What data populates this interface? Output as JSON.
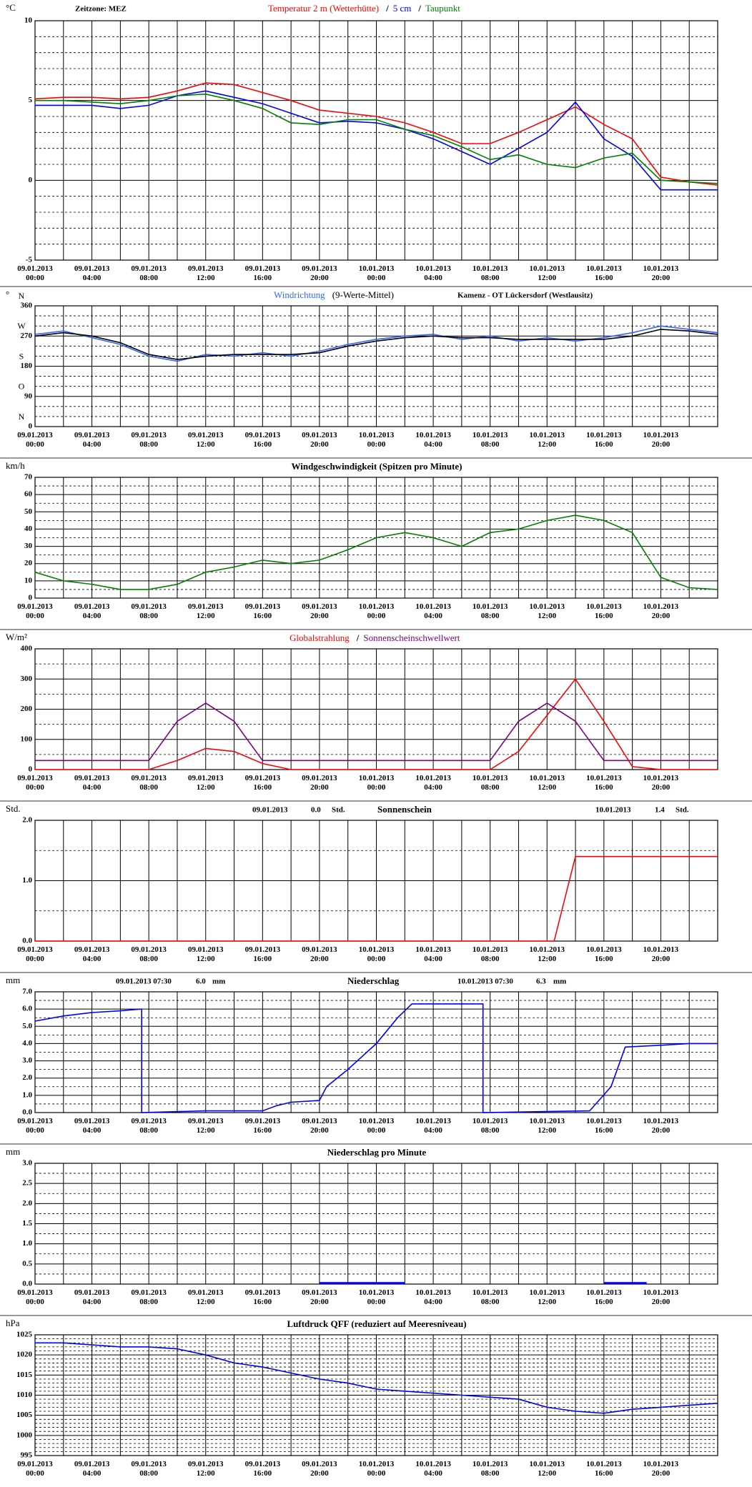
{
  "chart_data": [
    {
      "type": "line",
      "unit": "°C",
      "annotations": [
        "Zeitzone: MEZ"
      ],
      "legend_separator": "/",
      "x": [
        "09.01.2013 00:00",
        "09.01.2013 02:00",
        "09.01.2013 04:00",
        "09.01.2013 06:00",
        "09.01.2013 08:00",
        "09.01.2013 10:00",
        "09.01.2013 12:00",
        "09.01.2013 14:00",
        "09.01.2013 16:00",
        "09.01.2013 18:00",
        "09.01.2013 20:00",
        "09.01.2013 22:00",
        "10.01.2013 00:00",
        "10.01.2013 02:00",
        "10.01.2013 04:00",
        "10.01.2013 06:00",
        "10.01.2013 08:00",
        "10.01.2013 10:00",
        "10.01.2013 12:00",
        "10.01.2013 14:00",
        "10.01.2013 16:00",
        "10.01.2013 18:00",
        "10.01.2013 20:00",
        "10.01.2013 22:00",
        "11.01.2013 00:00"
      ],
      "series": [
        {
          "name": "Temperatur 2 m (Wetterhütte)",
          "color": "#ff0000",
          "values": [
            5.1,
            5.2,
            5.2,
            5.1,
            5.2,
            5.6,
            6.1,
            6.0,
            5.5,
            5.0,
            4.4,
            4.2,
            4.0,
            3.6,
            3.0,
            2.3,
            2.3,
            3.0,
            3.8,
            4.6,
            3.5,
            2.6,
            0.2,
            -0.1,
            -0.3
          ]
        },
        {
          "name": "5 cm",
          "color": "#0000ff",
          "values": [
            4.7,
            4.7,
            4.7,
            4.5,
            4.7,
            5.3,
            5.6,
            5.2,
            4.8,
            4.2,
            3.6,
            3.7,
            3.6,
            3.2,
            2.6,
            1.8,
            1.0,
            2.0,
            3.0,
            4.9,
            2.6,
            1.5,
            -0.6,
            -0.6,
            -0.6
          ]
        },
        {
          "name": "Taupunkt",
          "color": "#008000",
          "values": [
            5.0,
            5.0,
            4.9,
            4.8,
            5.0,
            5.3,
            5.4,
            5.0,
            4.5,
            3.6,
            3.5,
            3.8,
            3.8,
            3.2,
            2.8,
            2.1,
            1.3,
            1.6,
            1.0,
            0.8,
            1.4,
            1.7,
            0.0,
            -0.1,
            -0.2
          ]
        }
      ],
      "xlim": [
        "09.01.2013 00:00",
        "11.01.2013 00:00"
      ],
      "xticks": [
        "09.01.2013 00:00",
        "09.01.2013 04:00",
        "09.01.2013 08:00",
        "09.01.2013 12:00",
        "09.01.2013 16:00",
        "09.01.2013 20:00",
        "10.01.2013 00:00",
        "10.01.2013 04:00",
        "10.01.2013 08:00",
        "10.01.2013 12:00",
        "10.01.2013 16:00",
        "10.01.2013 20:00"
      ],
      "ylim": [
        -5,
        10
      ],
      "yticks": [
        -5,
        0,
        5,
        10
      ],
      "grid": true
    },
    {
      "type": "line",
      "unit": "°",
      "annotations": [
        "Kamenz - OT Lückersdorf (Westlausitz)"
      ],
      "compass_labels": [
        "N",
        "O",
        "S",
        "W",
        "N"
      ],
      "x": [
        "09.01.2013 00:00",
        "09.01.2013 02:00",
        "09.01.2013 04:00",
        "09.01.2013 06:00",
        "09.01.2013 08:00",
        "09.01.2013 10:00",
        "09.01.2013 12:00",
        "09.01.2013 14:00",
        "09.01.2013 16:00",
        "09.01.2013 18:00",
        "09.01.2013 20:00",
        "09.01.2013 22:00",
        "10.01.2013 00:00",
        "10.01.2013 02:00",
        "10.01.2013 04:00",
        "10.01.2013 06:00",
        "10.01.2013 08:00",
        "10.01.2013 10:00",
        "10.01.2013 12:00",
        "10.01.2013 14:00",
        "10.01.2013 16:00",
        "10.01.2013 18:00",
        "10.01.2013 20:00",
        "10.01.2013 22:00",
        "11.01.2013 00:00"
      ],
      "series": [
        {
          "name": "Windrichtung",
          "color": "#3366ff",
          "values": [
            275,
            285,
            265,
            245,
            210,
            195,
            215,
            210,
            220,
            210,
            225,
            245,
            260,
            270,
            275,
            260,
            270,
            255,
            265,
            255,
            265,
            280,
            300,
            290,
            280
          ]
        },
        {
          "name": "(9-Werte-Mittel)",
          "color": "#000000",
          "values": [
            270,
            280,
            270,
            250,
            215,
            200,
            210,
            215,
            215,
            215,
            220,
            240,
            255,
            265,
            270,
            265,
            265,
            260,
            260,
            260,
            260,
            270,
            290,
            285,
            275
          ]
        }
      ],
      "xlim": [
        "09.01.2013 00:00",
        "11.01.2013 00:00"
      ],
      "xticks": [
        "09.01.2013 00:00",
        "09.01.2013 04:00",
        "09.01.2013 08:00",
        "09.01.2013 12:00",
        "09.01.2013 16:00",
        "09.01.2013 20:00",
        "10.01.2013 00:00",
        "10.01.2013 04:00",
        "10.01.2013 08:00",
        "10.01.2013 12:00",
        "10.01.2013 16:00",
        "10.01.2013 20:00"
      ],
      "ylim": [
        0,
        360
      ],
      "yticks": [
        0,
        90,
        180,
        270,
        360
      ],
      "grid": true
    },
    {
      "type": "line",
      "unit": "km/h",
      "title": "Windgeschwindigkeit (Spitzen pro Minute)",
      "x": [
        "09.01.2013 00:00",
        "09.01.2013 02:00",
        "09.01.2013 04:00",
        "09.01.2013 06:00",
        "09.01.2013 08:00",
        "09.01.2013 10:00",
        "09.01.2013 12:00",
        "09.01.2013 14:00",
        "09.01.2013 16:00",
        "09.01.2013 18:00",
        "09.01.2013 20:00",
        "09.01.2013 22:00",
        "10.01.2013 00:00",
        "10.01.2013 02:00",
        "10.01.2013 04:00",
        "10.01.2013 06:00",
        "10.01.2013 08:00",
        "10.01.2013 10:00",
        "10.01.2013 12:00",
        "10.01.2013 14:00",
        "10.01.2013 16:00",
        "10.01.2013 18:00",
        "10.01.2013 20:00",
        "10.01.2013 22:00",
        "11.01.2013 00:00"
      ],
      "series": [
        {
          "color": "#008000",
          "values": [
            15,
            10,
            8,
            5,
            5,
            8,
            15,
            18,
            22,
            20,
            22,
            28,
            35,
            38,
            35,
            30,
            38,
            40,
            45,
            48,
            45,
            38,
            12,
            6,
            5
          ]
        }
      ],
      "xlim": [
        "09.01.2013 00:00",
        "11.01.2013 00:00"
      ],
      "xticks": [
        "09.01.2013 00:00",
        "09.01.2013 04:00",
        "09.01.2013 08:00",
        "09.01.2013 12:00",
        "09.01.2013 16:00",
        "09.01.2013 20:00",
        "10.01.2013 00:00",
        "10.01.2013 04:00",
        "10.01.2013 08:00",
        "10.01.2013 12:00",
        "10.01.2013 16:00",
        "10.01.2013 20:00"
      ],
      "ylim": [
        0,
        70
      ],
      "yticks": [
        0,
        10,
        20,
        30,
        40,
        50,
        60,
        70
      ],
      "grid": true
    },
    {
      "type": "line",
      "unit": "W/m²",
      "legend_separator": "/",
      "x": [
        "09.01.2013 00:00",
        "09.01.2013 02:00",
        "09.01.2013 04:00",
        "09.01.2013 06:00",
        "09.01.2013 08:00",
        "09.01.2013 10:00",
        "09.01.2013 12:00",
        "09.01.2013 14:00",
        "09.01.2013 16:00",
        "09.01.2013 18:00",
        "09.01.2013 20:00",
        "09.01.2013 22:00",
        "10.01.2013 00:00",
        "10.01.2013 02:00",
        "10.01.2013 04:00",
        "10.01.2013 06:00",
        "10.01.2013 08:00",
        "10.01.2013 10:00",
        "10.01.2013 12:00",
        "10.01.2013 14:00",
        "10.01.2013 16:00",
        "10.01.2013 18:00",
        "10.01.2013 20:00",
        "10.01.2013 22:00",
        "11.01.2013 00:00"
      ],
      "series": [
        {
          "name": "Globalstrahlung",
          "color": "#ff0000",
          "values": [
            0,
            0,
            0,
            0,
            0,
            30,
            70,
            60,
            20,
            0,
            0,
            0,
            0,
            0,
            0,
            0,
            0,
            60,
            180,
            300,
            160,
            10,
            0,
            0,
            0
          ]
        },
        {
          "name": "Sonnenscheinschwellwert",
          "color": "#800080",
          "values": [
            30,
            30,
            30,
            30,
            30,
            160,
            220,
            160,
            30,
            30,
            30,
            30,
            30,
            30,
            30,
            30,
            30,
            160,
            220,
            160,
            30,
            30,
            30,
            30,
            30
          ]
        }
      ],
      "xlim": [
        "09.01.2013 00:00",
        "11.01.2013 00:00"
      ],
      "xticks": [
        "09.01.2013 00:00",
        "09.01.2013 04:00",
        "09.01.2013 08:00",
        "09.01.2013 12:00",
        "09.01.2013 16:00",
        "09.01.2013 20:00",
        "10.01.2013 00:00",
        "10.01.2013 04:00",
        "10.01.2013 08:00",
        "10.01.2013 12:00",
        "10.01.2013 16:00",
        "10.01.2013 20:00"
      ],
      "ylim": [
        0,
        400
      ],
      "yticks": [
        0,
        100,
        200,
        300,
        400
      ],
      "grid": true
    },
    {
      "type": "line",
      "unit": "Std.",
      "title": "Sonnenschein",
      "annotations": [
        "09.01.2013",
        "0.0",
        "Std.",
        "10.01.2013",
        "1.4",
        "Std."
      ],
      "x": [
        "09.01.2013 00:00",
        "10.01.2013 12:30",
        "10.01.2013 14:00",
        "11.01.2013 00:00"
      ],
      "series": [
        {
          "color": "#ff0000",
          "values": [
            0,
            0,
            1.4,
            1.4
          ]
        }
      ],
      "xlim": [
        "09.01.2013 00:00",
        "11.01.2013 00:00"
      ],
      "xticks": [
        "09.01.2013 00:00",
        "09.01.2013 04:00",
        "09.01.2013 08:00",
        "09.01.2013 12:00",
        "09.01.2013 16:00",
        "09.01.2013 20:00",
        "10.01.2013 00:00",
        "10.01.2013 04:00",
        "10.01.2013 08:00",
        "10.01.2013 12:00",
        "10.01.2013 16:00",
        "10.01.2013 20:00"
      ],
      "ylim": [
        0,
        2
      ],
      "yticks": [
        {
          "value": 0,
          "label": "0.0"
        },
        {
          "value": 1,
          "label": "1.0"
        },
        {
          "value": 2,
          "label": "2.0"
        }
      ],
      "grid": true
    },
    {
      "type": "line",
      "unit": "mm",
      "title": "Niederschlag",
      "annotations": [
        "09.01.2013 07:30",
        "6.0",
        "mm",
        "10.01.2013 07:30",
        "6.3",
        "mm"
      ],
      "x": [
        "09.01.2013 00:00",
        "09.01.2013 02:00",
        "09.01.2013 04:00",
        "09.01.2013 06:00",
        "09.01.2013 07:30",
        "09.01.2013 07:30",
        "09.01.2013 12:00",
        "09.01.2013 16:00",
        "09.01.2013 17:00",
        "09.01.2013 18:00",
        "09.01.2013 20:00",
        "09.01.2013 20:30",
        "09.01.2013 22:00",
        "10.01.2013 00:00",
        "10.01.2013 01:30",
        "10.01.2013 02:30",
        "10.01.2013 07:30",
        "10.01.2013 07:30",
        "10.01.2013 15:00",
        "10.01.2013 16:30",
        "10.01.2013 17:30",
        "10.01.2013 20:00",
        "10.01.2013 22:00",
        "11.01.2013 00:00"
      ],
      "series": [
        {
          "color": "#0000ff",
          "values": [
            5.3,
            5.6,
            5.8,
            5.9,
            6.0,
            0.0,
            0.1,
            0.1,
            0.4,
            0.6,
            0.7,
            1.5,
            2.5,
            4.0,
            5.5,
            6.3,
            6.3,
            0.0,
            0.1,
            1.5,
            3.8,
            3.9,
            4.0,
            4.0
          ]
        }
      ],
      "xlim": [
        "09.01.2013 00:00",
        "11.01.2013 00:00"
      ],
      "xticks": [
        "09.01.2013 00:00",
        "09.01.2013 04:00",
        "09.01.2013 08:00",
        "09.01.2013 12:00",
        "09.01.2013 16:00",
        "09.01.2013 20:00",
        "10.01.2013 00:00",
        "10.01.2013 04:00",
        "10.01.2013 08:00",
        "10.01.2013 12:00",
        "10.01.2013 16:00",
        "10.01.2013 20:00"
      ],
      "ylim": [
        0,
        7
      ],
      "yticks": [
        {
          "value": 0,
          "label": "0.0"
        },
        {
          "value": 1,
          "label": "1.0"
        },
        {
          "value": 2,
          "label": "2.0"
        },
        {
          "value": 3,
          "label": "3.0"
        },
        {
          "value": 4,
          "label": "4.0"
        },
        {
          "value": 5,
          "label": "5.0"
        },
        {
          "value": 6,
          "label": "6.0"
        },
        {
          "value": 7,
          "label": "7.0"
        }
      ],
      "grid": true
    },
    {
      "type": "bar",
      "unit": "mm",
      "title": "Niederschlag pro Minute",
      "x": [
        "09.01.2013 20:00",
        "09.01.2013 21:00",
        "09.01.2013 22:00",
        "09.01.2013 23:00",
        "10.01.2013 00:00",
        "10.01.2013 01:00",
        "10.01.2013 16:00",
        "10.01.2013 17:00",
        "10.01.2013 18:00"
      ],
      "series": [
        {
          "color": "#0000ff",
          "values": [
            0.05,
            0.05,
            0.05,
            0.05,
            0.05,
            0.05,
            0.05,
            0.05,
            0.05
          ]
        }
      ],
      "xlim": [
        "09.01.2013 00:00",
        "11.01.2013 00:00"
      ],
      "xticks": [
        "09.01.2013 00:00",
        "09.01.2013 04:00",
        "09.01.2013 08:00",
        "09.01.2013 12:00",
        "09.01.2013 16:00",
        "09.01.2013 20:00",
        "10.01.2013 00:00",
        "10.01.2013 04:00",
        "10.01.2013 08:00",
        "10.01.2013 12:00",
        "10.01.2013 16:00",
        "10.01.2013 20:00"
      ],
      "ylim": [
        0,
        3
      ],
      "yticks": [
        {
          "value": 0,
          "label": "0.0"
        },
        {
          "value": 0.5,
          "label": "0.5"
        },
        {
          "value": 1,
          "label": "1.0"
        },
        {
          "value": 1.5,
          "label": "1.5"
        },
        {
          "value": 2,
          "label": "2.0"
        },
        {
          "value": 2.5,
          "label": "2.5"
        },
        {
          "value": 3,
          "label": "3.0"
        }
      ],
      "grid": true
    },
    {
      "type": "line",
      "unit": "hPa",
      "title": "Luftdruck QFF (reduziert auf Meeresniveau)",
      "x": [
        "09.01.2013 00:00",
        "09.01.2013 02:00",
        "09.01.2013 04:00",
        "09.01.2013 06:00",
        "09.01.2013 08:00",
        "09.01.2013 10:00",
        "09.01.2013 12:00",
        "09.01.2013 14:00",
        "09.01.2013 16:00",
        "09.01.2013 18:00",
        "09.01.2013 20:00",
        "09.01.2013 22:00",
        "10.01.2013 00:00",
        "10.01.2013 02:00",
        "10.01.2013 04:00",
        "10.01.2013 06:00",
        "10.01.2013 08:00",
        "10.01.2013 10:00",
        "10.01.2013 12:00",
        "10.01.2013 14:00",
        "10.01.2013 16:00",
        "10.01.2013 18:00",
        "10.01.2013 20:00",
        "10.01.2013 22:00",
        "11.01.2013 00:00"
      ],
      "series": [
        {
          "color": "#0000ff",
          "values": [
            1023,
            1023,
            1022.5,
            1022,
            1022,
            1021.5,
            1020,
            1018,
            1017,
            1015.5,
            1014,
            1013,
            1011.5,
            1011,
            1010.5,
            1010,
            1009.5,
            1009,
            1007,
            1006,
            1005.5,
            1006.5,
            1007,
            1007.5,
            1008
          ]
        }
      ],
      "xlim": [
        "09.01.2013 00:00",
        "11.01.2013 00:00"
      ],
      "xticks": [
        "09.01.2013 00:00",
        "09.01.2013 04:00",
        "09.01.2013 08:00",
        "09.01.2013 12:00",
        "09.01.2013 16:00",
        "09.01.2013 20:00",
        "10.01.2013 00:00",
        "10.01.2013 04:00",
        "10.01.2013 08:00",
        "10.01.2013 12:00",
        "10.01.2013 16:00",
        "10.01.2013 20:00"
      ],
      "ylim": [
        995,
        1025
      ],
      "yticks": [
        995,
        1000,
        1005,
        1010,
        1015,
        1020,
        1025
      ],
      "grid": true
    }
  ]
}
